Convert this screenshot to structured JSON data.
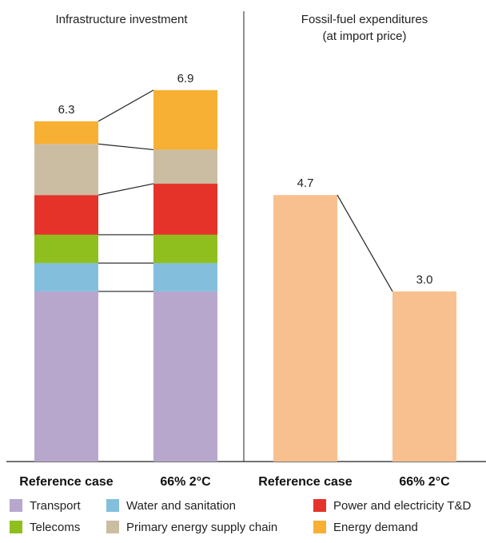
{
  "chart_data": [
    {
      "type": "bar",
      "stacked": true,
      "title": "Infrastructure investment",
      "categories": [
        "Reference case",
        "66% 2°C"
      ],
      "totals": [
        6.3,
        6.9
      ],
      "series": [
        {
          "name": "Transport",
          "color": "#b7a7cd",
          "values": [
            3.0,
            3.0
          ]
        },
        {
          "name": "Water and sanitation",
          "color": "#83bfdd",
          "values": [
            0.5,
            0.5
          ]
        },
        {
          "name": "Telecoms",
          "color": "#8ebf1e",
          "values": [
            0.5,
            0.5
          ]
        },
        {
          "name": "Power and electricity T&D",
          "color": "#e5332a",
          "values": [
            0.7,
            0.9
          ]
        },
        {
          "name": "Primary energy supply chain",
          "color": "#cbbda2",
          "values": [
            0.9,
            0.6
          ]
        },
        {
          "name": "Energy demand",
          "color": "#f7b033",
          "values": [
            0.4,
            1.05
          ]
        }
      ],
      "ylim": [
        0,
        6.9
      ]
    },
    {
      "type": "bar",
      "title_lines": [
        "Fossil-fuel expenditures",
        "(at import price)"
      ],
      "categories": [
        "Reference case",
        "66% 2°C"
      ],
      "values": [
        4.7,
        3.0
      ],
      "color": "#f9c08f",
      "ylim": [
        0,
        6.9
      ]
    }
  ],
  "legend": [
    {
      "label": "Transport",
      "color": "#b7a7cd"
    },
    {
      "label": "Water and sanitation",
      "color": "#83bfdd"
    },
    {
      "label": "Power and electricity T&D",
      "color": "#e5332a"
    },
    {
      "label": "Telecoms",
      "color": "#8ebf1e"
    },
    {
      "label": "Primary energy supply chain",
      "color": "#cbbda2"
    },
    {
      "label": "Energy demand",
      "color": "#f7b033"
    }
  ]
}
